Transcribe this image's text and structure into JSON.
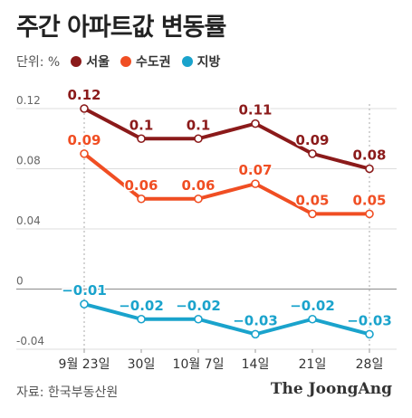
{
  "title": "주간 아파트값 변동률",
  "unit": "단위: %",
  "source": "자료: 한국부동산원",
  "brand": "The JoongAng",
  "colors": {
    "seoul": "#8b1a1a",
    "capital": "#f04e23",
    "local": "#1aa3cc"
  },
  "chart_data": {
    "type": "line",
    "categories": [
      "9월 23일",
      "30일",
      "10월 7일",
      "14일",
      "21일",
      "28일"
    ],
    "ylim": [
      -0.04,
      0.12
    ],
    "yticks": [
      -0.04,
      0,
      0.04,
      0.08,
      0.12
    ],
    "ytick_labels": [
      "-0.04",
      "0",
      "0.04",
      "0.08",
      "0.12"
    ],
    "series": [
      {
        "name": "서울",
        "color": "#8b1a1a",
        "values": [
          0.12,
          0.1,
          0.1,
          0.11,
          0.09,
          0.08
        ],
        "labels": [
          "0.12",
          "0.1",
          "0.1",
          "0.11",
          "0.09",
          "0.08"
        ]
      },
      {
        "name": "수도권",
        "color": "#f04e23",
        "values": [
          0.09,
          0.06,
          0.06,
          0.07,
          0.05,
          0.05
        ],
        "labels": [
          "0.09",
          "0.06",
          "0.06",
          "0.07",
          "0.05",
          "0.05"
        ]
      },
      {
        "name": "지방",
        "color": "#1aa3cc",
        "values": [
          -0.01,
          -0.02,
          -0.02,
          -0.03,
          -0.02,
          -0.03
        ],
        "labels": [
          "−0.01",
          "−0.02",
          "−0.02",
          "−0.03",
          "−0.02",
          "−0.03"
        ]
      }
    ]
  }
}
